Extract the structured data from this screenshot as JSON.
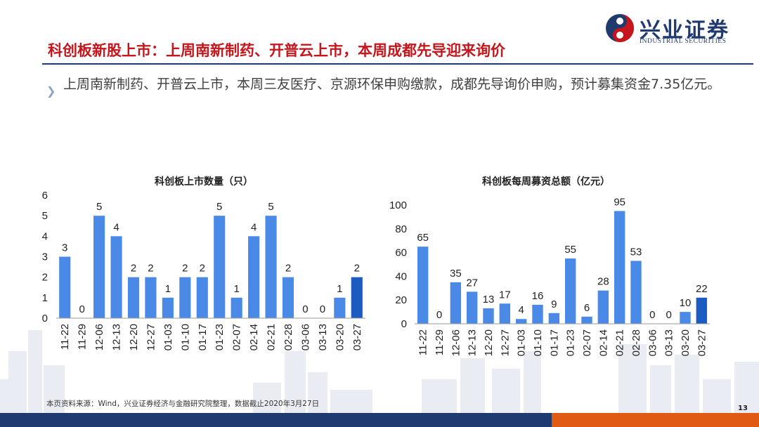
{
  "colors": {
    "accent": "#c4161c",
    "navy": "#1f3a6e",
    "bar": "#4a8ae6",
    "bar_last": "#1a5cc0"
  },
  "logo": {
    "name": "兴业证券",
    "sub": "INDUSTRIAL SECURITIES"
  },
  "title": "科创板新股上市：上周南新制药、开普云上市，本周成都先导迎来询价",
  "bullet": "上周南新制药、开普云上市，本周三友医疗、京源环保申购缴款，成都先导询价申购，预计募集资金7.35亿元。",
  "footer": "本页资料来源：Wind，兴业证券经济与金融研究院整理，数据截止2020年3月27日",
  "page_number": "13",
  "chart_data": [
    {
      "type": "bar",
      "title": "科创板上市数量（只）",
      "categories": [
        "11-22",
        "11-29",
        "12-06",
        "12-13",
        "12-20",
        "12-27",
        "01-03",
        "01-10",
        "01-17",
        "01-23",
        "02-07",
        "02-14",
        "02-21",
        "02-28",
        "03-06",
        "03-13",
        "03-20",
        "03-27"
      ],
      "values": [
        3,
        0,
        5,
        4,
        2,
        2,
        1,
        2,
        2,
        5,
        1,
        4,
        5,
        2,
        0,
        0,
        1,
        2
      ],
      "ylim": [
        0,
        6
      ],
      "yticks": [
        0,
        1,
        2,
        3,
        4,
        5,
        6
      ],
      "grid": false
    },
    {
      "type": "bar",
      "title": "科创板每周募资总额（亿元）",
      "categories": [
        "11-22",
        "11-29",
        "12-06",
        "12-13",
        "12-20",
        "12-27",
        "01-03",
        "01-10",
        "01-17",
        "01-23",
        "02-07",
        "02-14",
        "02-21",
        "02-28",
        "03-06",
        "03-13",
        "03-20",
        "03-27"
      ],
      "values": [
        65,
        0,
        35,
        27,
        13,
        17,
        4,
        16,
        9,
        55,
        6,
        28,
        95,
        53,
        0,
        0,
        10,
        22
      ],
      "ylim": [
        0,
        100
      ],
      "yticks": [
        0,
        20,
        40,
        60,
        80,
        100
      ],
      "grid": false
    }
  ]
}
